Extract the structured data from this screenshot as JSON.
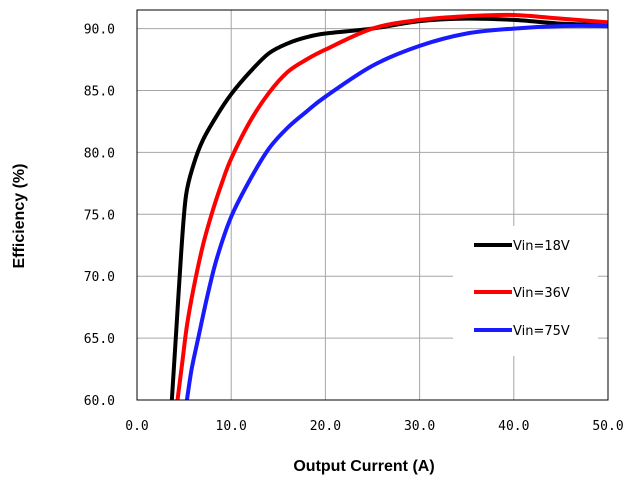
{
  "chart_data": {
    "type": "line",
    "xlabel": "Output Current (A)",
    "ylabel": "Efficiency (%)",
    "xlim": [
      0,
      50
    ],
    "ylim": [
      60,
      92
    ],
    "xticks": [
      "0.0",
      "10.0",
      "20.0",
      "30.0",
      "40.0",
      "50.0"
    ],
    "yticks": [
      "60.0",
      "65.0",
      "70.0",
      "75.0",
      "80.0",
      "85.0",
      "90.0"
    ],
    "grid": true,
    "legend_position": "right",
    "series": [
      {
        "name": "Vin=18V",
        "color": "#000000",
        "points": [
          [
            3.7,
            60.0
          ],
          [
            4.2,
            66.0
          ],
          [
            4.7,
            72.0
          ],
          [
            5.2,
            76.5
          ],
          [
            6.0,
            79.0
          ],
          [
            7.0,
            81.0
          ],
          [
            8.5,
            83.0
          ],
          [
            10.0,
            84.7
          ],
          [
            12.0,
            86.5
          ],
          [
            14.0,
            88.0
          ],
          [
            16.0,
            88.8
          ],
          [
            18.0,
            89.3
          ],
          [
            20.0,
            89.6
          ],
          [
            25.0,
            90.0
          ],
          [
            30.0,
            90.6
          ],
          [
            35.0,
            90.8
          ],
          [
            40.0,
            90.7
          ],
          [
            45.0,
            90.4
          ],
          [
            50.0,
            90.3
          ]
        ]
      },
      {
        "name": "Vin=36V",
        "color": "#ff0000",
        "points": [
          [
            4.3,
            60.0
          ],
          [
            4.8,
            63.0
          ],
          [
            5.3,
            66.0
          ],
          [
            6.0,
            69.0
          ],
          [
            7.0,
            72.5
          ],
          [
            8.0,
            75.2
          ],
          [
            9.0,
            77.5
          ],
          [
            10.0,
            79.5
          ],
          [
            12.0,
            82.5
          ],
          [
            14.0,
            84.8
          ],
          [
            16.0,
            86.5
          ],
          [
            18.0,
            87.5
          ],
          [
            20.0,
            88.3
          ],
          [
            25.0,
            90.0
          ],
          [
            30.0,
            90.7
          ],
          [
            35.0,
            91.0
          ],
          [
            40.0,
            91.1
          ],
          [
            45.0,
            90.8
          ],
          [
            50.0,
            90.5
          ]
        ]
      },
      {
        "name": "Vin=75V",
        "color": "#1a1aff",
        "points": [
          [
            5.3,
            60.0
          ],
          [
            5.8,
            62.5
          ],
          [
            6.5,
            65.0
          ],
          [
            7.5,
            68.5
          ],
          [
            8.5,
            71.5
          ],
          [
            10.0,
            74.8
          ],
          [
            12.0,
            77.8
          ],
          [
            14.0,
            80.3
          ],
          [
            16.0,
            82.0
          ],
          [
            18.0,
            83.3
          ],
          [
            20.0,
            84.5
          ],
          [
            25.0,
            87.0
          ],
          [
            30.0,
            88.6
          ],
          [
            35.0,
            89.6
          ],
          [
            40.0,
            90.0
          ],
          [
            45.0,
            90.2
          ],
          [
            50.0,
            90.2
          ]
        ]
      }
    ]
  }
}
